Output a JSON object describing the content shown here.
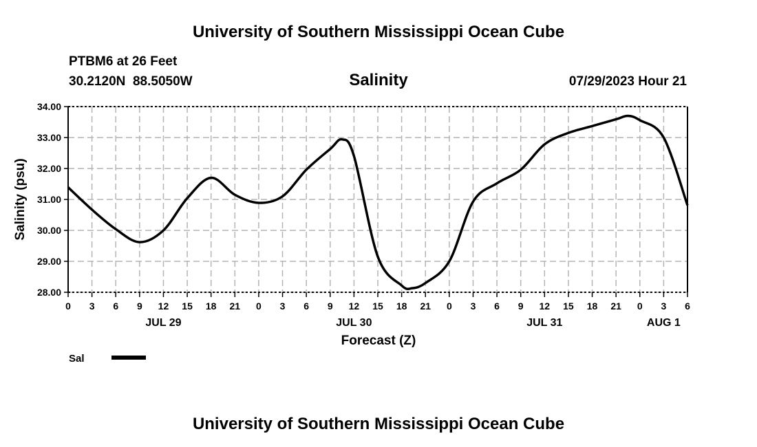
{
  "header": {
    "title": "University of Southern Mississippi Ocean Cube",
    "station": "PTBM6 at 26 Feet",
    "coords": "30.2120N  88.5050W",
    "variable": "Salinity",
    "datetime": "07/29/2023 Hour 21"
  },
  "footer": {
    "title": "University of Southern Mississippi Ocean Cube"
  },
  "chart_data": {
    "type": "line",
    "title": "Salinity",
    "xlabel": "Forecast (Z)",
    "ylabel": "Salinity (psu)",
    "xlim": [
      0,
      78
    ],
    "ylim": [
      28,
      34
    ],
    "grid": true,
    "yticks": [
      "28.00",
      "29.00",
      "30.00",
      "31.00",
      "32.00",
      "33.00",
      "34.00"
    ],
    "xtick_labels": [
      "0",
      "3",
      "6",
      "9",
      "12",
      "15",
      "18",
      "21",
      "0",
      "3",
      "6",
      "9",
      "12",
      "15",
      "18",
      "21",
      "0",
      "3",
      "6",
      "9",
      "12",
      "15",
      "18",
      "21",
      "0",
      "3",
      "6"
    ],
    "date_labels": [
      {
        "label": "JUL 29",
        "hour": 12
      },
      {
        "label": "JUL 30",
        "hour": 36
      },
      {
        "label": "JUL 31",
        "hour": 60
      },
      {
        "label": "AUG 1",
        "hour": 75
      }
    ],
    "legend": {
      "placement": "bottom-left",
      "entries": [
        "Sal"
      ]
    },
    "series": [
      {
        "name": "Sal",
        "color": "#000000",
        "x": [
          0,
          3,
          6,
          9,
          12,
          15,
          18,
          21,
          24,
          27,
          30,
          33,
          34.5,
          36,
          39,
          42,
          43.3,
          45,
          48,
          51,
          54,
          57,
          60,
          63,
          66,
          69,
          70.5,
          72,
          75,
          78
        ],
        "y": [
          31.39,
          30.67,
          30.04,
          29.62,
          30.0,
          31.04,
          31.7,
          31.15,
          30.89,
          31.1,
          31.96,
          32.63,
          32.94,
          32.4,
          29.15,
          28.22,
          28.13,
          28.3,
          29.0,
          30.93,
          31.52,
          31.96,
          32.78,
          33.15,
          33.37,
          33.59,
          33.7,
          33.56,
          33.0,
          30.81
        ]
      }
    ]
  }
}
